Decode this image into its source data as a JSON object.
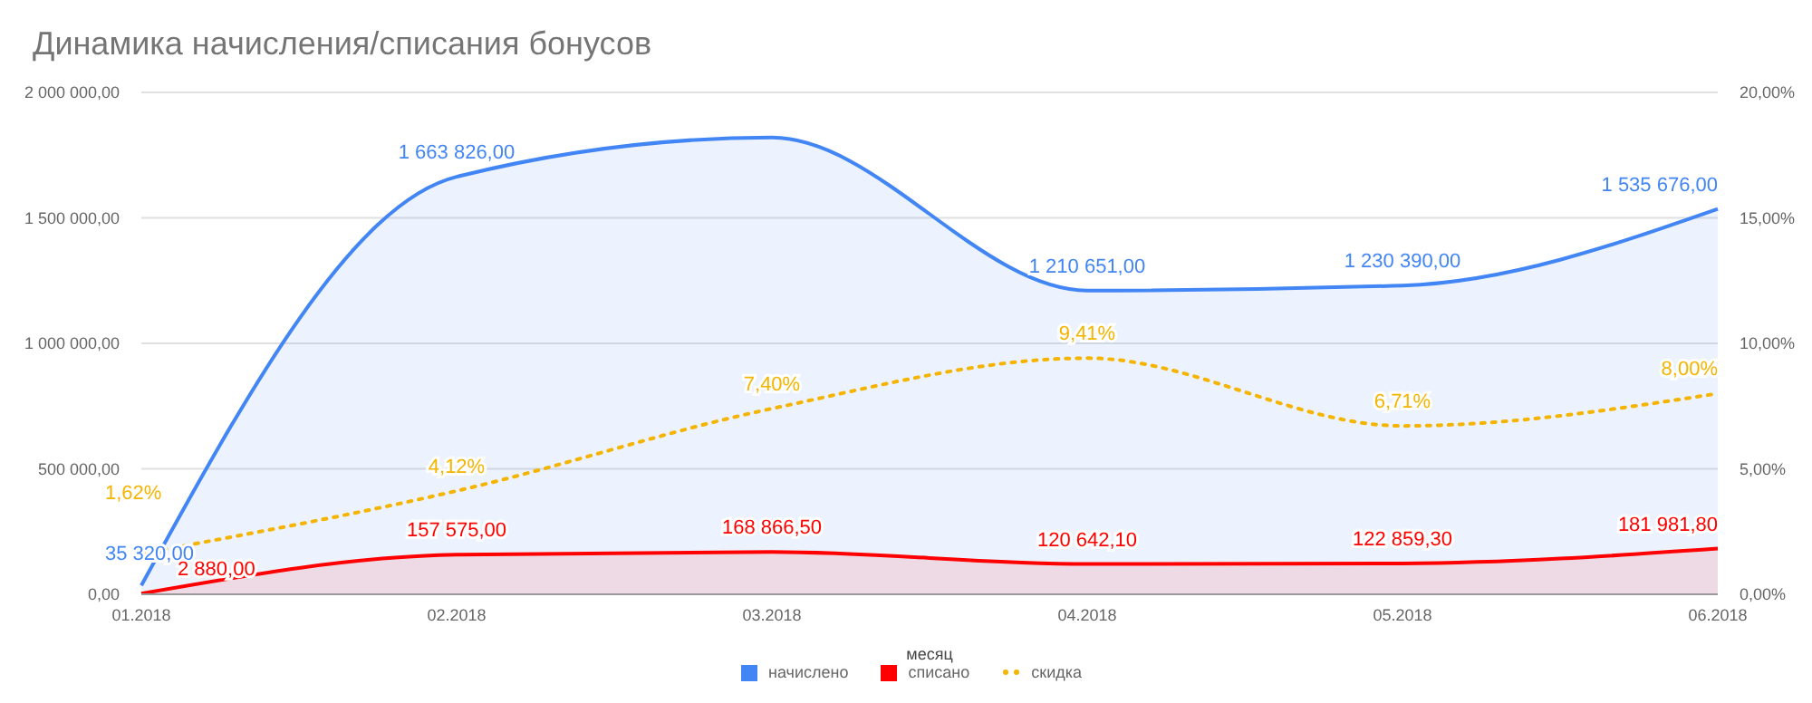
{
  "chart_data": {
    "type": "area",
    "title": "Динамика начисления/списания бонусов",
    "xlabel": "месяц",
    "categories": [
      "01.2018",
      "02.2018",
      "03.2018",
      "04.2018",
      "05.2018",
      "06.2018"
    ],
    "series": [
      {
        "name": "начислено",
        "color": "#4285f4",
        "values": [
          35320,
          1663826,
          1820000,
          1210651,
          1230390,
          1535676
        ],
        "value_labels": [
          "35 320,00",
          "1 663 826,00",
          null,
          "1 210 651,00",
          "1 230 390,00",
          "1 535 676,00"
        ]
      },
      {
        "name": "списано",
        "color": "#ff0000",
        "values": [
          2880,
          157575,
          168866.5,
          120642.1,
          122859.3,
          181981.8
        ],
        "value_labels": [
          "2 880,00",
          "157 575,00",
          "168 866,50",
          "120 642,10",
          "122 859,30",
          "181 981,80"
        ]
      },
      {
        "name": "скидка",
        "type": "line",
        "color": "#f4b400",
        "axis": "y2",
        "line_style": "dotted",
        "values": [
          1.62,
          4.12,
          7.4,
          9.41,
          6.71,
          8.0
        ],
        "value_labels": [
          "1,62%",
          "4,12%",
          "7,40%",
          "9,41%",
          "6,71%",
          "8,00%"
        ]
      }
    ],
    "ylim": [
      0,
      2000000
    ],
    "yticks": [
      {
        "value": 0,
        "label": "0,00"
      },
      {
        "value": 500000,
        "label": "500 000,00"
      },
      {
        "value": 1000000,
        "label": "1 000 000,00"
      },
      {
        "value": 1500000,
        "label": "1 500 000,00"
      },
      {
        "value": 2000000,
        "label": "2 000 000,00"
      }
    ],
    "y2lim": [
      0,
      20
    ],
    "y2ticks": [
      {
        "value": 0,
        "label": "0,00%"
      },
      {
        "value": 5,
        "label": "5,00%"
      },
      {
        "value": 10,
        "label": "10,00%"
      },
      {
        "value": 15,
        "label": "15,00%"
      },
      {
        "value": 20,
        "label": "20,00%"
      }
    ],
    "grid": "y",
    "legend": "bottom",
    "marker": "none"
  }
}
